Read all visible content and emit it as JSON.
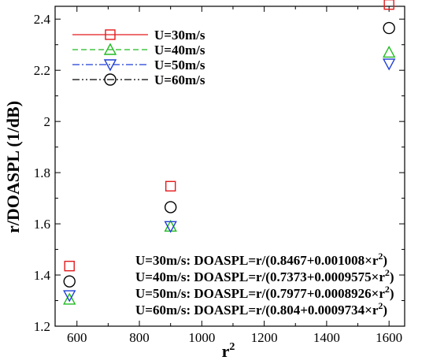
{
  "chart_data": {
    "type": "line",
    "title": "",
    "xlabel": "r",
    "xlabel_sup": "2",
    "ylabel": "r/DOASPL (1/dB)",
    "xlim": [
      530,
      1650
    ],
    "ylim": [
      1.2,
      2.45
    ],
    "xticks": [
      600,
      800,
      1000,
      1200,
      1400,
      1600
    ],
    "yticks": [
      1.2,
      1.4,
      1.6,
      1.8,
      2.0,
      2.2,
      2.4
    ],
    "ytick_labels": [
      "1.2",
      "1.4",
      "1.6",
      "1.8",
      "2",
      "2.2",
      "2.4"
    ],
    "grid": false,
    "legend_position": "top-left",
    "series": [
      {
        "name": "U=30m/s",
        "color": "#e31a1c",
        "marker": "square",
        "linestyle": "solid",
        "x": [
          576,
          900,
          1600
        ],
        "y": [
          1.435,
          1.747,
          2.457
        ],
        "fit": {
          "a": 0.8467,
          "b": 0.001008
        }
      },
      {
        "name": "U=40m/s",
        "color": "#22bb22",
        "marker": "triangle-up",
        "linestyle": "dashed",
        "x": [
          576,
          900,
          1600
        ],
        "y": [
          1.305,
          1.59,
          2.27
        ],
        "fit": {
          "a": 0.7373,
          "b": 0.0009575
        }
      },
      {
        "name": "U=50m/s",
        "color": "#1f3fd6",
        "marker": "triangle-down",
        "linestyle": "dashdot",
        "x": [
          576,
          900,
          1600
        ],
        "y": [
          1.32,
          1.59,
          2.225
        ],
        "fit": {
          "a": 0.7977,
          "b": 0.0008926
        }
      },
      {
        "name": "U=60m/s",
        "color": "#000000",
        "marker": "circle",
        "linestyle": "dashdotdot",
        "x": [
          576,
          900,
          1600
        ],
        "y": [
          1.375,
          1.665,
          2.365
        ],
        "fit": {
          "a": 0.804,
          "b": 0.0009734
        }
      }
    ],
    "annotations": [
      {
        "prefix": "U=30m/s: DOASPL=r/(0.8467+0.001008×r",
        "sup": "2",
        "suffix": ")"
      },
      {
        "prefix": "U=40m/s: DOASPL=r/(0.7373+0.0009575×r",
        "sup": "2",
        "suffix": ")"
      },
      {
        "prefix": "U=50m/s: DOASPL=r/(0.7977+0.0008926×r",
        "sup": "2",
        "suffix": ")"
      },
      {
        "prefix": "U=60m/s: DOASPL=r/(0.804+0.0009734×r",
        "sup": "2",
        "suffix": ")"
      }
    ]
  }
}
